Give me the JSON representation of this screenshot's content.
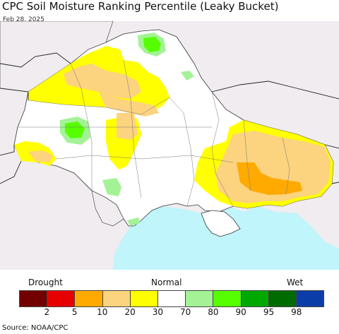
{
  "title": "CPC Soil Moisture Ranking Percentile (Leaky Bucket)",
  "date": "Feb 28, 2025",
  "legend": {
    "left_label": "Drought",
    "center_label": "Normal",
    "right_label": "Wet",
    "colors": [
      "#730000",
      "#e60000",
      "#ffaa00",
      "#fcd37f",
      "#ffff00",
      "#ffffff",
      "#a4f296",
      "#55ff00",
      "#00a800",
      "#006b00",
      "#0a3da8"
    ],
    "ticks": [
      "2",
      "5",
      "10",
      "20",
      "30",
      "70",
      "80",
      "90",
      "95",
      "98"
    ]
  },
  "source": "Source: NOAA/CPC",
  "map_colors": {
    "land_outside": "#f0ecf0",
    "sea": "#bff5fb",
    "normal": "#ffffff",
    "dry_30": "#ffff00",
    "dry_20": "#fcd37f",
    "dry_10": "#ffaa00",
    "wet_80": "#a4f296",
    "wet_90": "#55ff00"
  }
}
